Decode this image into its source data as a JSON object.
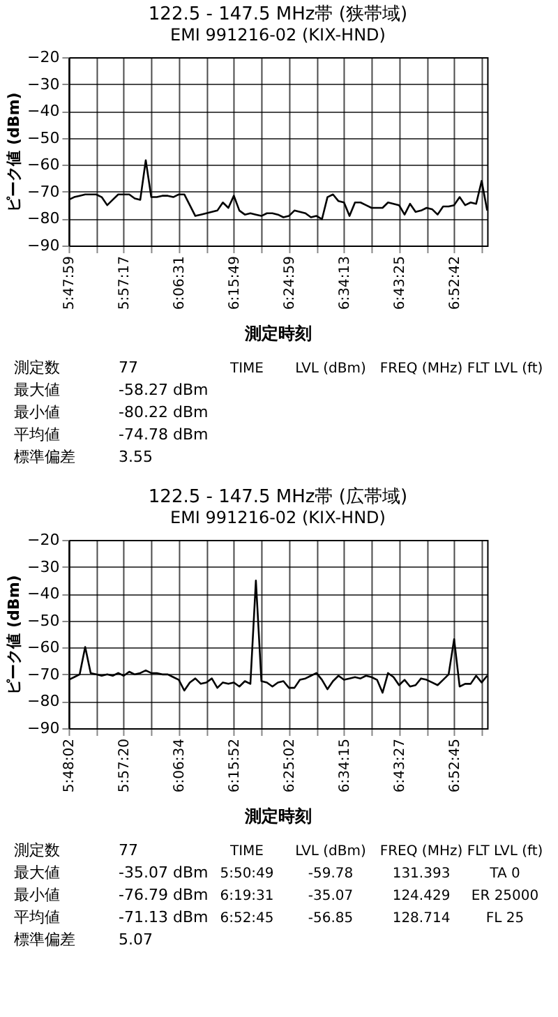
{
  "chart_data": [
    {
      "type": "line",
      "title": "122.5 - 147.5 MHz帯 (狭帯域)",
      "subtitle": "EMI 991216-02 (KIX-HND)",
      "xlabel": "測定時刻",
      "ylabel": "ピーク値 (dBm)",
      "ylim": [
        -90,
        -20
      ],
      "yticks": [
        -90,
        -80,
        -70,
        -60,
        -50,
        -40,
        -30,
        -20
      ],
      "grid": true,
      "marker": "none",
      "line_style": "solid",
      "categories": [
        "5:47:59",
        null,
        null,
        null,
        null,
        null,
        null,
        null,
        null,
        null,
        "5:57:17",
        null,
        null,
        null,
        null,
        null,
        null,
        null,
        null,
        null,
        "6:06:31",
        null,
        null,
        null,
        null,
        null,
        null,
        null,
        null,
        null,
        "6:15:49",
        null,
        null,
        null,
        null,
        null,
        null,
        null,
        null,
        null,
        "6:24:59",
        null,
        null,
        null,
        null,
        null,
        null,
        null,
        null,
        null,
        "6:34:13",
        null,
        null,
        null,
        null,
        null,
        null,
        null,
        null,
        null,
        "6:43:25",
        null,
        null,
        null,
        null,
        null,
        null,
        null,
        null,
        null,
        "6:52:42",
        null,
        null,
        null,
        null,
        null,
        null
      ],
      "series": [
        {
          "color": "#000000",
          "values": [
            -73,
            -72,
            -71.5,
            -71,
            -71,
            -71,
            -72,
            -75,
            -73,
            -71,
            -71,
            -71,
            -72.5,
            -73,
            -58.3,
            -72,
            -72,
            -71.5,
            -71.5,
            -72,
            -71,
            -71,
            -75,
            -79,
            -78.5,
            -78,
            -77.5,
            -77,
            -74,
            -76,
            -71.5,
            -77,
            -78.5,
            -78,
            -78.5,
            -79,
            -78,
            -78,
            -78.5,
            -79.5,
            -79,
            -77,
            -77.5,
            -78,
            -79.5,
            -79,
            -80.2,
            -72,
            -71,
            -73.5,
            -74,
            -79,
            -74,
            -74,
            -75,
            -76,
            -76,
            -76,
            -74,
            -74.5,
            -75,
            -78.5,
            -74.5,
            -77.5,
            -77,
            -76,
            -76.5,
            -78.5,
            -75.5,
            -75.5,
            -75,
            -72,
            -75,
            -74,
            -74.5,
            -66,
            -77
          ]
        }
      ],
      "annotations": [
        "測定数",
        "77",
        "最大値",
        "-58.27  dBm",
        "最小値",
        "-80.22  dBm",
        "平均値",
        "-74.78  dBm",
        "標準偏差",
        "3.55",
        "TIME",
        "LVL (dBm)",
        "FREQ (MHz)",
        "FLT LVL (ft)"
      ]
    },
    {
      "type": "line",
      "title": "122.5 - 147.5 MHz帯 (広帯域)",
      "subtitle": "EMI 991216-02 (KIX-HND)",
      "xlabel": "測定時刻",
      "ylabel": "ピーク値 (dBm)",
      "ylim": [
        -90,
        -20
      ],
      "yticks": [
        -90,
        -80,
        -70,
        -60,
        -50,
        -40,
        -30,
        -20
      ],
      "grid": true,
      "marker": "none",
      "line_style": "solid",
      "categories": [
        "5:48:02",
        null,
        null,
        null,
        null,
        null,
        null,
        null,
        null,
        null,
        "5:57:20",
        null,
        null,
        null,
        null,
        null,
        null,
        null,
        null,
        null,
        "6:06:34",
        null,
        null,
        null,
        null,
        null,
        null,
        null,
        null,
        null,
        "6:15:52",
        null,
        null,
        null,
        null,
        null,
        null,
        null,
        null,
        null,
        "6:25:02",
        null,
        null,
        null,
        null,
        null,
        null,
        null,
        null,
        null,
        "6:34:15",
        null,
        null,
        null,
        null,
        null,
        null,
        null,
        null,
        null,
        "6:43:27",
        null,
        null,
        null,
        null,
        null,
        null,
        null,
        null,
        null,
        "6:52:45",
        null,
        null,
        null,
        null,
        null,
        null
      ],
      "series": [
        {
          "color": "#000000",
          "values": [
            -72,
            -71,
            -70,
            -59.8,
            -69.5,
            -70,
            -70.5,
            -70,
            -70.5,
            -69.5,
            -70.5,
            -69,
            -70,
            -69.5,
            -68.5,
            -69.5,
            -69.5,
            -70,
            -70,
            -71,
            -72,
            -76,
            -73,
            -71.5,
            -73.5,
            -73,
            -71.5,
            -75,
            -73,
            -73.5,
            -73,
            -74.5,
            -72.5,
            -73.5,
            -35.1,
            -72.5,
            -73,
            -74.5,
            -73,
            -72.5,
            -75,
            -75,
            -72,
            -71.5,
            -70.5,
            -69.5,
            -72,
            -75.5,
            -72.5,
            -70.5,
            -72,
            -71.5,
            -71,
            -71.5,
            -70.5,
            -71,
            -72,
            -76.8,
            -69.5,
            -71,
            -74,
            -72,
            -74.5,
            -74,
            -71.5,
            -72,
            -73,
            -74,
            -72,
            -70,
            -56.9,
            -74.5,
            -73.5,
            -73.5,
            -70.5,
            -73,
            -70.5
          ]
        }
      ],
      "annotations": [
        "測定数",
        "77",
        "最大値",
        "-35.07  dBm",
        "最小値",
        "-76.79  dBm",
        "平均値",
        "-71.13  dBm",
        "標準偏差",
        "5.07",
        "TIME",
        "LVL (dBm)",
        "FREQ (MHz)",
        "FLT LVL (ft)",
        "5:50:49",
        "-59.78",
        "131.393",
        "TA  0",
        "6:19:31",
        "-35.07",
        "124.429",
        "ER 25000",
        "6:52:45",
        "-56.85",
        "128.714",
        "FL  25"
      ]
    }
  ]
}
